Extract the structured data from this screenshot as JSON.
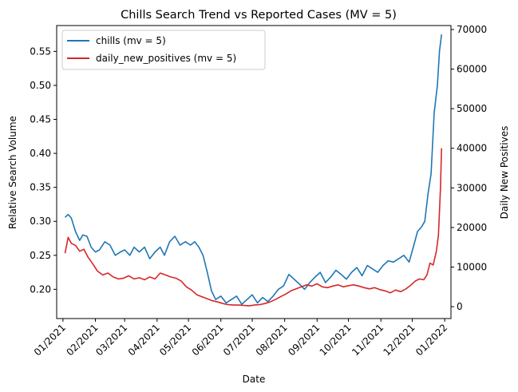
{
  "chart_data": {
    "type": "line",
    "title": "Chills Search Trend vs Reported Cases (MV = 5)",
    "xlabel": "Date",
    "ylabel_left": "Relative Search Volume",
    "ylabel_right": "Daily New Positives",
    "x_ticks": [
      "01/2021",
      "02/2021",
      "03/2021",
      "04/2021",
      "05/2021",
      "06/2021",
      "07/2021",
      "08/2021",
      "09/2021",
      "10/2021",
      "11/2021",
      "12/2021",
      "01/2022"
    ],
    "x_tick_dates": [
      "2021-01-01",
      "2021-02-01",
      "2021-03-01",
      "2021-04-01",
      "2021-05-01",
      "2021-06-01",
      "2021-07-01",
      "2021-08-01",
      "2021-09-01",
      "2021-10-01",
      "2021-11-01",
      "2021-12-01",
      "2022-01-01"
    ],
    "xlim": [
      "2020-12-26",
      "2022-01-07"
    ],
    "ylim_left": [
      0.157,
      0.588
    ],
    "ylim_right": [
      -3000,
      71000
    ],
    "y_ticks_left": [
      "0.20",
      "0.25",
      "0.30",
      "0.35",
      "0.40",
      "0.45",
      "0.50",
      "0.55"
    ],
    "y_ticks_right": [
      "0",
      "10000",
      "20000",
      "30000",
      "40000",
      "50000",
      "60000",
      "70000"
    ],
    "legend_position": "upper-left",
    "grid": false,
    "series": [
      {
        "name": "chills (mv = 5)",
        "axis": "left",
        "color": "#1f77b4",
        "x": [
          "2021-01-03",
          "2021-01-06",
          "2021-01-09",
          "2021-01-13",
          "2021-01-17",
          "2021-01-20",
          "2021-01-24",
          "2021-01-28",
          "2021-02-01",
          "2021-02-05",
          "2021-02-10",
          "2021-02-15",
          "2021-02-20",
          "2021-02-25",
          "2021-03-01",
          "2021-03-06",
          "2021-03-10",
          "2021-03-15",
          "2021-03-20",
          "2021-03-25",
          "2021-03-30",
          "2021-04-04",
          "2021-04-08",
          "2021-04-13",
          "2021-04-18",
          "2021-04-23",
          "2021-04-28",
          "2021-05-03",
          "2021-05-07",
          "2021-05-11",
          "2021-05-15",
          "2021-05-19",
          "2021-05-23",
          "2021-05-27",
          "2021-06-01",
          "2021-06-06",
          "2021-06-11",
          "2021-06-16",
          "2021-06-21",
          "2021-06-26",
          "2021-07-01",
          "2021-07-06",
          "2021-07-11",
          "2021-07-16",
          "2021-07-21",
          "2021-07-26",
          "2021-07-31",
          "2021-08-05",
          "2021-08-10",
          "2021-08-15",
          "2021-08-20",
          "2021-08-25",
          "2021-08-30",
          "2021-09-04",
          "2021-09-09",
          "2021-09-14",
          "2021-09-19",
          "2021-09-24",
          "2021-09-29",
          "2021-10-04",
          "2021-10-09",
          "2021-10-14",
          "2021-10-19",
          "2021-10-24",
          "2021-10-29",
          "2021-11-03",
          "2021-11-08",
          "2021-11-13",
          "2021-11-18",
          "2021-11-23",
          "2021-11-28",
          "2021-12-02",
          "2021-12-06",
          "2021-12-10",
          "2021-12-13",
          "2021-12-16",
          "2021-12-19",
          "2021-12-22",
          "2021-12-25",
          "2021-12-27",
          "2021-12-29"
        ],
        "y": [
          0.306,
          0.31,
          0.305,
          0.285,
          0.272,
          0.28,
          0.278,
          0.262,
          0.255,
          0.258,
          0.27,
          0.265,
          0.25,
          0.255,
          0.258,
          0.25,
          0.262,
          0.255,
          0.262,
          0.245,
          0.255,
          0.262,
          0.25,
          0.27,
          0.278,
          0.265,
          0.27,
          0.265,
          0.27,
          0.262,
          0.25,
          0.225,
          0.198,
          0.185,
          0.19,
          0.18,
          0.185,
          0.19,
          0.178,
          0.185,
          0.192,
          0.18,
          0.188,
          0.182,
          0.19,
          0.2,
          0.205,
          0.222,
          0.215,
          0.208,
          0.2,
          0.21,
          0.218,
          0.225,
          0.21,
          0.218,
          0.228,
          0.222,
          0.215,
          0.225,
          0.232,
          0.22,
          0.235,
          0.23,
          0.225,
          0.235,
          0.242,
          0.24,
          0.245,
          0.25,
          0.24,
          0.262,
          0.285,
          0.292,
          0.3,
          0.34,
          0.37,
          0.46,
          0.5,
          0.55,
          0.575
        ]
      },
      {
        "name": "daily_new_positives (mv = 5)",
        "axis": "right",
        "color": "#d62728",
        "x": [
          "2021-01-03",
          "2021-01-06",
          "2021-01-09",
          "2021-01-13",
          "2021-01-17",
          "2021-01-21",
          "2021-01-25",
          "2021-01-29",
          "2021-02-03",
          "2021-02-08",
          "2021-02-13",
          "2021-02-18",
          "2021-02-23",
          "2021-02-28",
          "2021-03-05",
          "2021-03-10",
          "2021-03-15",
          "2021-03-20",
          "2021-03-25",
          "2021-03-30",
          "2021-04-04",
          "2021-04-09",
          "2021-04-14",
          "2021-04-19",
          "2021-04-24",
          "2021-04-29",
          "2021-05-04",
          "2021-05-09",
          "2021-05-14",
          "2021-05-19",
          "2021-05-24",
          "2021-05-29",
          "2021-06-03",
          "2021-06-08",
          "2021-06-13",
          "2021-06-18",
          "2021-06-23",
          "2021-06-28",
          "2021-07-03",
          "2021-07-08",
          "2021-07-13",
          "2021-07-18",
          "2021-07-23",
          "2021-07-28",
          "2021-08-02",
          "2021-08-07",
          "2021-08-12",
          "2021-08-17",
          "2021-08-22",
          "2021-08-27",
          "2021-09-01",
          "2021-09-06",
          "2021-09-11",
          "2021-09-16",
          "2021-09-21",
          "2021-09-26",
          "2021-10-01",
          "2021-10-06",
          "2021-10-11",
          "2021-10-16",
          "2021-10-21",
          "2021-10-26",
          "2021-10-31",
          "2021-11-05",
          "2021-11-10",
          "2021-11-15",
          "2021-11-20",
          "2021-11-25",
          "2021-11-30",
          "2021-12-04",
          "2021-12-08",
          "2021-12-12",
          "2021-12-15",
          "2021-12-18",
          "2021-12-21",
          "2021-12-24",
          "2021-12-26",
          "2021-12-28",
          "2021-12-29"
        ],
        "y": [
          13500,
          17500,
          16000,
          15500,
          14000,
          14500,
          12500,
          11000,
          9000,
          8000,
          8500,
          7500,
          7000,
          7200,
          7800,
          7000,
          7300,
          6800,
          7500,
          7000,
          8500,
          8000,
          7500,
          7200,
          6500,
          5000,
          4200,
          3000,
          2500,
          2000,
          1500,
          1200,
          800,
          500,
          400,
          400,
          300,
          200,
          400,
          500,
          800,
          1200,
          1800,
          2500,
          3200,
          4000,
          4500,
          5000,
          5500,
          5200,
          5800,
          5000,
          4800,
          5200,
          5500,
          5000,
          5300,
          5500,
          5200,
          4800,
          4500,
          4800,
          4300,
          4000,
          3500,
          4200,
          3800,
          4500,
          5500,
          6500,
          7000,
          6800,
          8000,
          11000,
          10500,
          14000,
          18000,
          30000,
          40000
        ]
      }
    ]
  }
}
